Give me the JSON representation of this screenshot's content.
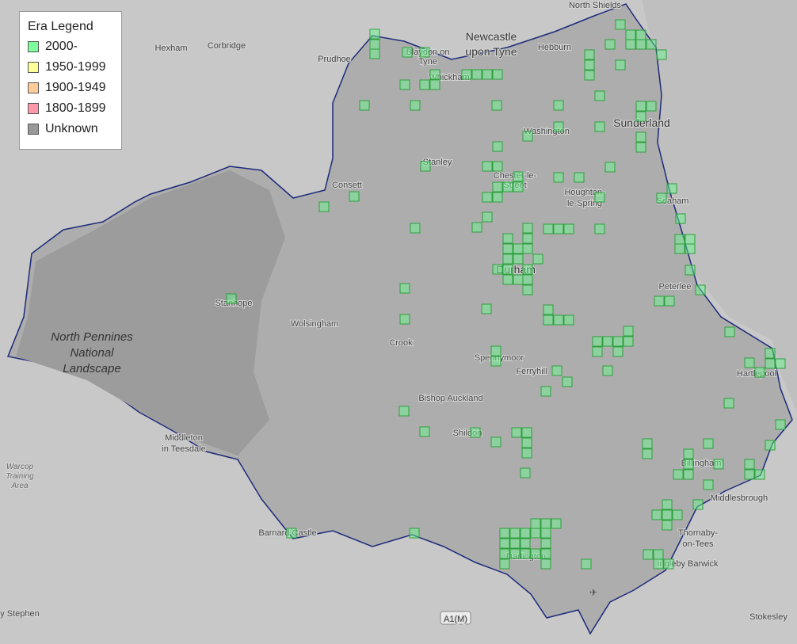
{
  "legend": {
    "title": "Era Legend",
    "items": [
      {
        "label": "2000-",
        "color": "#7dff9e"
      },
      {
        "label": "1950-1999",
        "color": "#ffff99"
      },
      {
        "label": "1900-1949",
        "color": "#ffcc99"
      },
      {
        "label": "1800-1899",
        "color": "#ff99aa"
      },
      {
        "label": "Unknown",
        "color": "#999999"
      }
    ]
  },
  "places": [
    [
      "North Shields"
    ],
    [
      "Newcastle",
      "upon Tyne"
    ],
    [
      "Hexham"
    ],
    [
      "Corbridge"
    ],
    [
      "Prudhoe"
    ],
    [
      "Blaydon on",
      "Tyne"
    ],
    [
      "Whickham"
    ],
    [
      "Hebburn"
    ],
    [
      "Sunderland"
    ],
    [
      "Washington"
    ],
    [
      "Stanley"
    ],
    [
      "Consett"
    ],
    [
      "Chester-le-",
      "Street"
    ],
    [
      "Houghton-",
      "le-Spring"
    ],
    [
      "Seaham"
    ],
    [
      "Durham"
    ],
    [
      "Peterlee"
    ],
    [
      "Stanhope"
    ],
    [
      "Wolsingham"
    ],
    [
      "Crook"
    ],
    [
      "North Pennines",
      "National",
      "Landscape"
    ],
    [
      "Spennymoor"
    ],
    [
      "Ferryhill"
    ],
    [
      "Hartlepool"
    ],
    [
      "Bishop Auckland"
    ],
    [
      "Shildon"
    ],
    [
      "Middleton",
      "in Teesdale"
    ],
    [
      "Billingham"
    ],
    [
      "Middlesbrough"
    ],
    [
      "Thornaby-",
      "on-Tees"
    ],
    [
      "Warcop",
      "Training",
      "Area"
    ],
    [
      "Barnard Castle"
    ],
    [
      "Darlington"
    ],
    [
      "Ingleby Barwick"
    ],
    [
      "A1(M)"
    ],
    [
      "Stokesley"
    ],
    [
      "y Stephen"
    ]
  ]
}
